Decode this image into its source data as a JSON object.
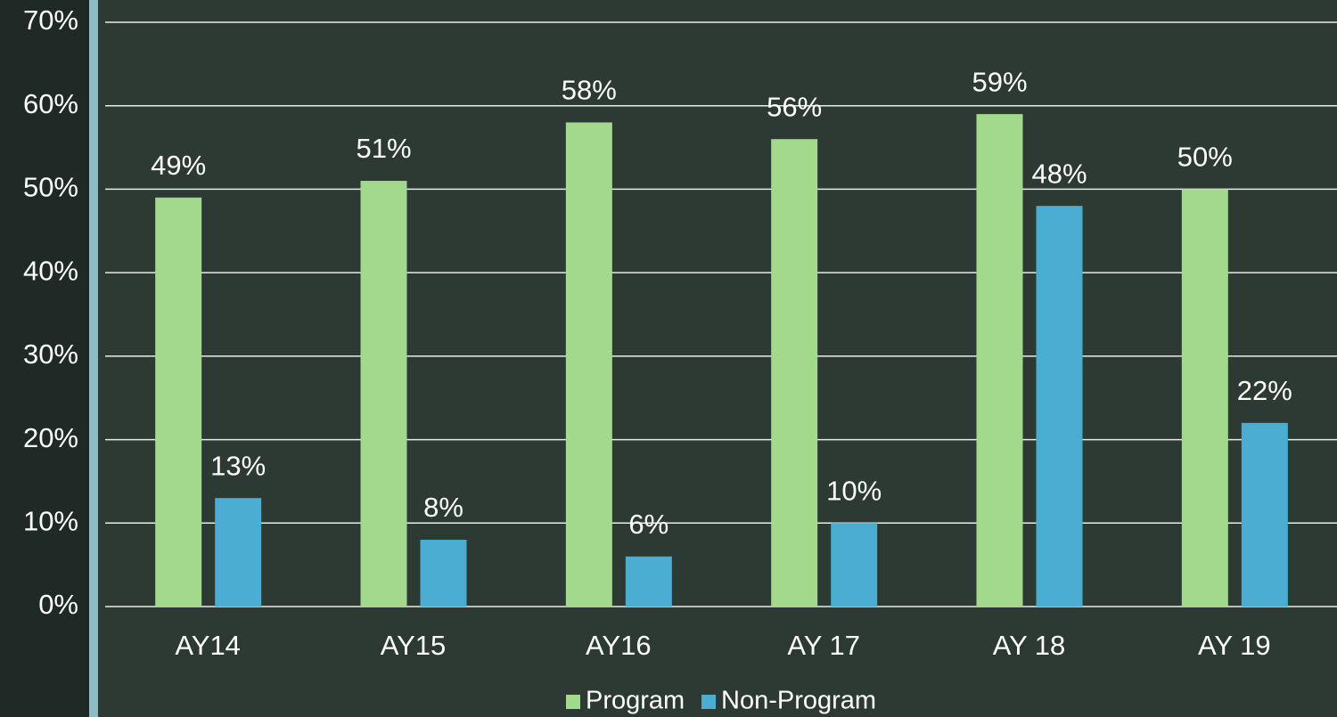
{
  "chart_data": {
    "type": "bar",
    "categories": [
      "AY14",
      "AY15",
      "AY16",
      "AY 17",
      "AY 18",
      "AY 19"
    ],
    "series": [
      {
        "name": "Program",
        "color": "#a3d98d",
        "values": [
          49,
          51,
          58,
          56,
          59,
          50
        ],
        "value_labels": [
          "49%",
          "51%",
          "58%",
          "56%",
          "59%",
          "50%"
        ]
      },
      {
        "name": "Non-Program",
        "color": "#4aadd1",
        "values": [
          13,
          8,
          6,
          10,
          48,
          22
        ],
        "value_labels": [
          "13%",
          "8%",
          "6%",
          "10%",
          "48%",
          "22%"
        ]
      }
    ],
    "ylim": [
      0,
      70
    ],
    "yticks": [
      {
        "value": 0,
        "label": "0%"
      },
      {
        "value": 10,
        "label": "10%"
      },
      {
        "value": 20,
        "label": "20%"
      },
      {
        "value": 30,
        "label": "30%"
      },
      {
        "value": 40,
        "label": "40%"
      },
      {
        "value": 50,
        "label": "50%"
      },
      {
        "value": 60,
        "label": "60%"
      },
      {
        "value": 70,
        "label": "70%"
      }
    ],
    "grid": true,
    "legend": "bottom"
  }
}
